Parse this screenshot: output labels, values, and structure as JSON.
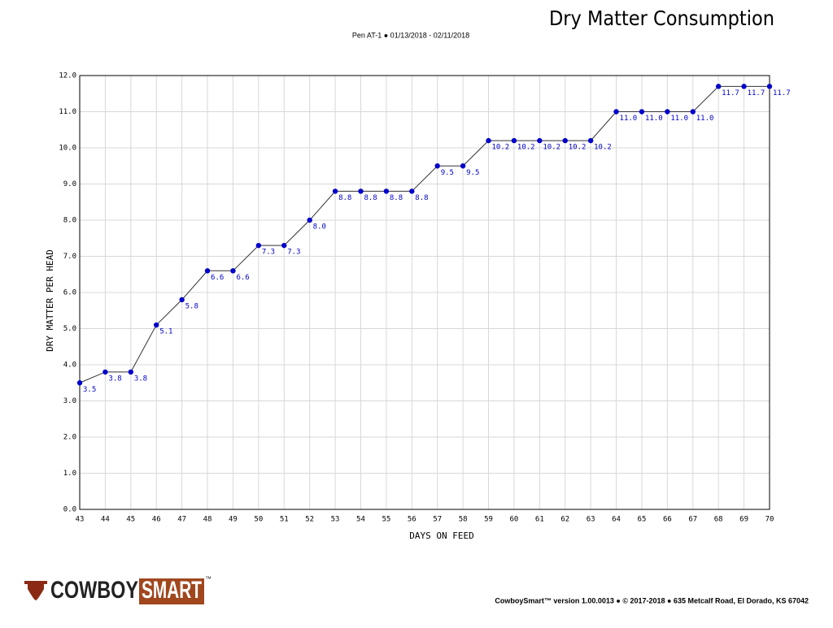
{
  "chart_data": {
    "type": "line",
    "title": "Dry Matter Consumption",
    "subtitle": "Pen AT-1 ● 01/13/2018 - 02/11/2018",
    "xlabel": "DAYS ON FEED",
    "ylabel": "DRY MATTER PER HEAD",
    "x": [
      43,
      44,
      45,
      46,
      47,
      48,
      49,
      50,
      51,
      52,
      53,
      54,
      55,
      56,
      57,
      58,
      59,
      60,
      61,
      62,
      63,
      64,
      65,
      66,
      67,
      68,
      69,
      70
    ],
    "values": [
      3.5,
      3.8,
      3.8,
      5.1,
      5.8,
      6.6,
      6.6,
      7.3,
      7.3,
      8.0,
      8.8,
      8.8,
      8.8,
      8.8,
      9.5,
      9.5,
      10.2,
      10.2,
      10.2,
      10.2,
      10.2,
      11.0,
      11.0,
      11.0,
      11.0,
      11.7,
      11.7,
      11.7
    ],
    "value_labels": [
      "3.5",
      "3.8",
      "3.8",
      "5.1",
      "5.8",
      "6.6",
      "6.6",
      "7.3",
      "7.3",
      "8.0",
      "8.8",
      "8.8",
      "8.8",
      "8.8",
      "9.5",
      "9.5",
      "10.2",
      "10.2",
      "10.2",
      "10.2",
      "10.2",
      "11.0",
      "11.0",
      "11.0",
      "11.0",
      "11.7",
      "11.7",
      "11.7"
    ],
    "color": "#0000cc",
    "line_color": "#333333",
    "xlim": [
      43,
      70
    ],
    "ylim": [
      0,
      12
    ],
    "xticks": [
      43,
      44,
      45,
      46,
      47,
      48,
      49,
      50,
      51,
      52,
      53,
      54,
      55,
      56,
      57,
      58,
      59,
      60,
      61,
      62,
      63,
      64,
      65,
      66,
      67,
      68,
      69,
      70
    ],
    "yticks": [
      {
        "value": 0,
        "label": "0.0"
      },
      {
        "value": 1,
        "label": "1.0"
      },
      {
        "value": 2,
        "label": "2.0"
      },
      {
        "value": 3,
        "label": "3.0"
      },
      {
        "value": 4,
        "label": "4.0"
      },
      {
        "value": 5,
        "label": "5.0"
      },
      {
        "value": 6,
        "label": "6.0"
      },
      {
        "value": 7,
        "label": "7.0"
      },
      {
        "value": 8,
        "label": "8.0"
      },
      {
        "value": 9,
        "label": "9.0"
      },
      {
        "value": 10,
        "label": "10.0"
      },
      {
        "value": 11,
        "label": "11.0"
      },
      {
        "value": 12,
        "label": "12.0"
      }
    ],
    "grid": true
  },
  "footer": {
    "logo_left": "COWBOY",
    "logo_right": "SMART",
    "logo_mark": "™",
    "credit": "CowboySmart™ version 1.00.0013 ● © 2017-2018 ● 635 Metcalf Road, El Dorado, KS 67042"
  }
}
